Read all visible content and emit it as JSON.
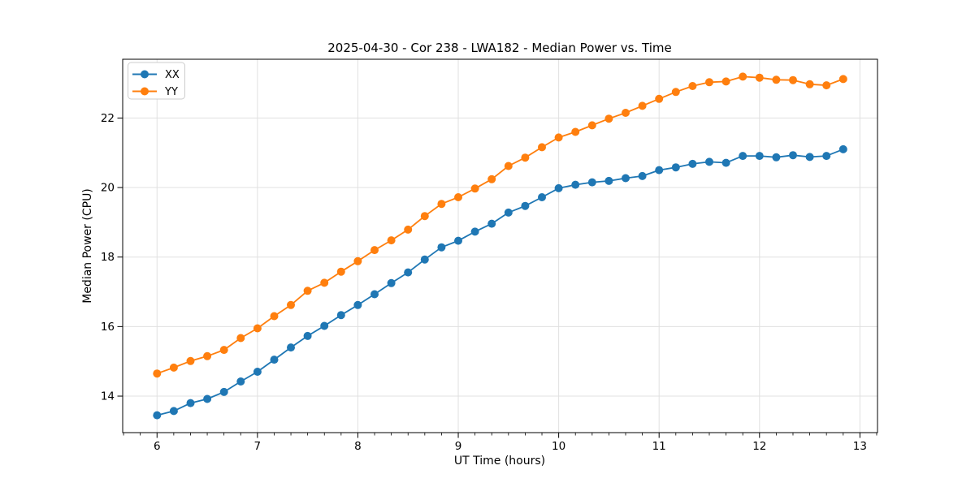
{
  "figure": {
    "background": "#ffffff",
    "text_color": "#000000",
    "grid_color": "#e0e0e0",
    "spine_color": "#000000",
    "legend_border_color": "#cccccc",
    "legend_background": "#ffffff"
  },
  "chart_data": {
    "type": "line",
    "title": "2025-04-30 - Cor 238 - LWA182 - Median Power vs. Time",
    "xlabel": "UT Time (hours)",
    "ylabel": "Median Power (CPU)",
    "xlim": [
      5.658,
      13.175
    ],
    "ylim": [
      12.95,
      23.69
    ],
    "x_ticks": [
      6,
      7,
      8,
      9,
      10,
      11,
      12,
      13
    ],
    "x_tick_labels": [
      "6",
      "7",
      "8",
      "9",
      "10",
      "11",
      "12",
      "13"
    ],
    "y_ticks": [
      14,
      16,
      18,
      20,
      22
    ],
    "y_tick_labels": [
      "14",
      "16",
      "18",
      "20",
      "22"
    ],
    "x_minor_tick_interval": 0.16667,
    "grid": true,
    "legend_position": "upper-left",
    "marker": "circle",
    "x": [
      6,
      6.1667,
      6.3333,
      6.5,
      6.6667,
      6.8333,
      7,
      7.1667,
      7.3333,
      7.5,
      7.6667,
      7.8333,
      8,
      8.1667,
      8.3333,
      8.5,
      8.6667,
      8.8333,
      9,
      9.1667,
      9.3333,
      9.5,
      9.6667,
      9.8333,
      10,
      10.1667,
      10.3333,
      10.5,
      10.6667,
      10.8333,
      11,
      11.1667,
      11.3333,
      11.5,
      11.6667,
      11.8333,
      12,
      12.1667,
      12.3333,
      12.5,
      12.6667,
      12.8333
    ],
    "series": [
      {
        "name": "XX",
        "color": "#1f77b4",
        "values": [
          13.45,
          13.57,
          13.8,
          13.92,
          14.12,
          14.42,
          14.7,
          15.05,
          15.4,
          15.73,
          16.02,
          16.33,
          16.62,
          16.93,
          17.25,
          17.56,
          17.93,
          18.28,
          18.47,
          18.73,
          18.96,
          19.28,
          19.47,
          19.72,
          19.98,
          20.08,
          20.15,
          20.19,
          20.27,
          20.33,
          20.5,
          20.58,
          20.68,
          20.74,
          20.71,
          20.91,
          20.91,
          20.87,
          20.93,
          20.88,
          20.91,
          21.1
        ]
      },
      {
        "name": "YY",
        "color": "#ff7f0e",
        "values": [
          14.65,
          14.82,
          15.01,
          15.15,
          15.33,
          15.67,
          15.95,
          16.3,
          16.62,
          17.03,
          17.26,
          17.58,
          17.88,
          18.2,
          18.48,
          18.79,
          19.18,
          19.53,
          19.72,
          19.97,
          20.24,
          20.62,
          20.86,
          21.16,
          21.44,
          21.6,
          21.79,
          21.98,
          22.15,
          22.35,
          22.55,
          22.75,
          22.92,
          23.03,
          23.05,
          23.19,
          23.16,
          23.1,
          23.09,
          22.97,
          22.94,
          23.12
        ]
      }
    ]
  }
}
